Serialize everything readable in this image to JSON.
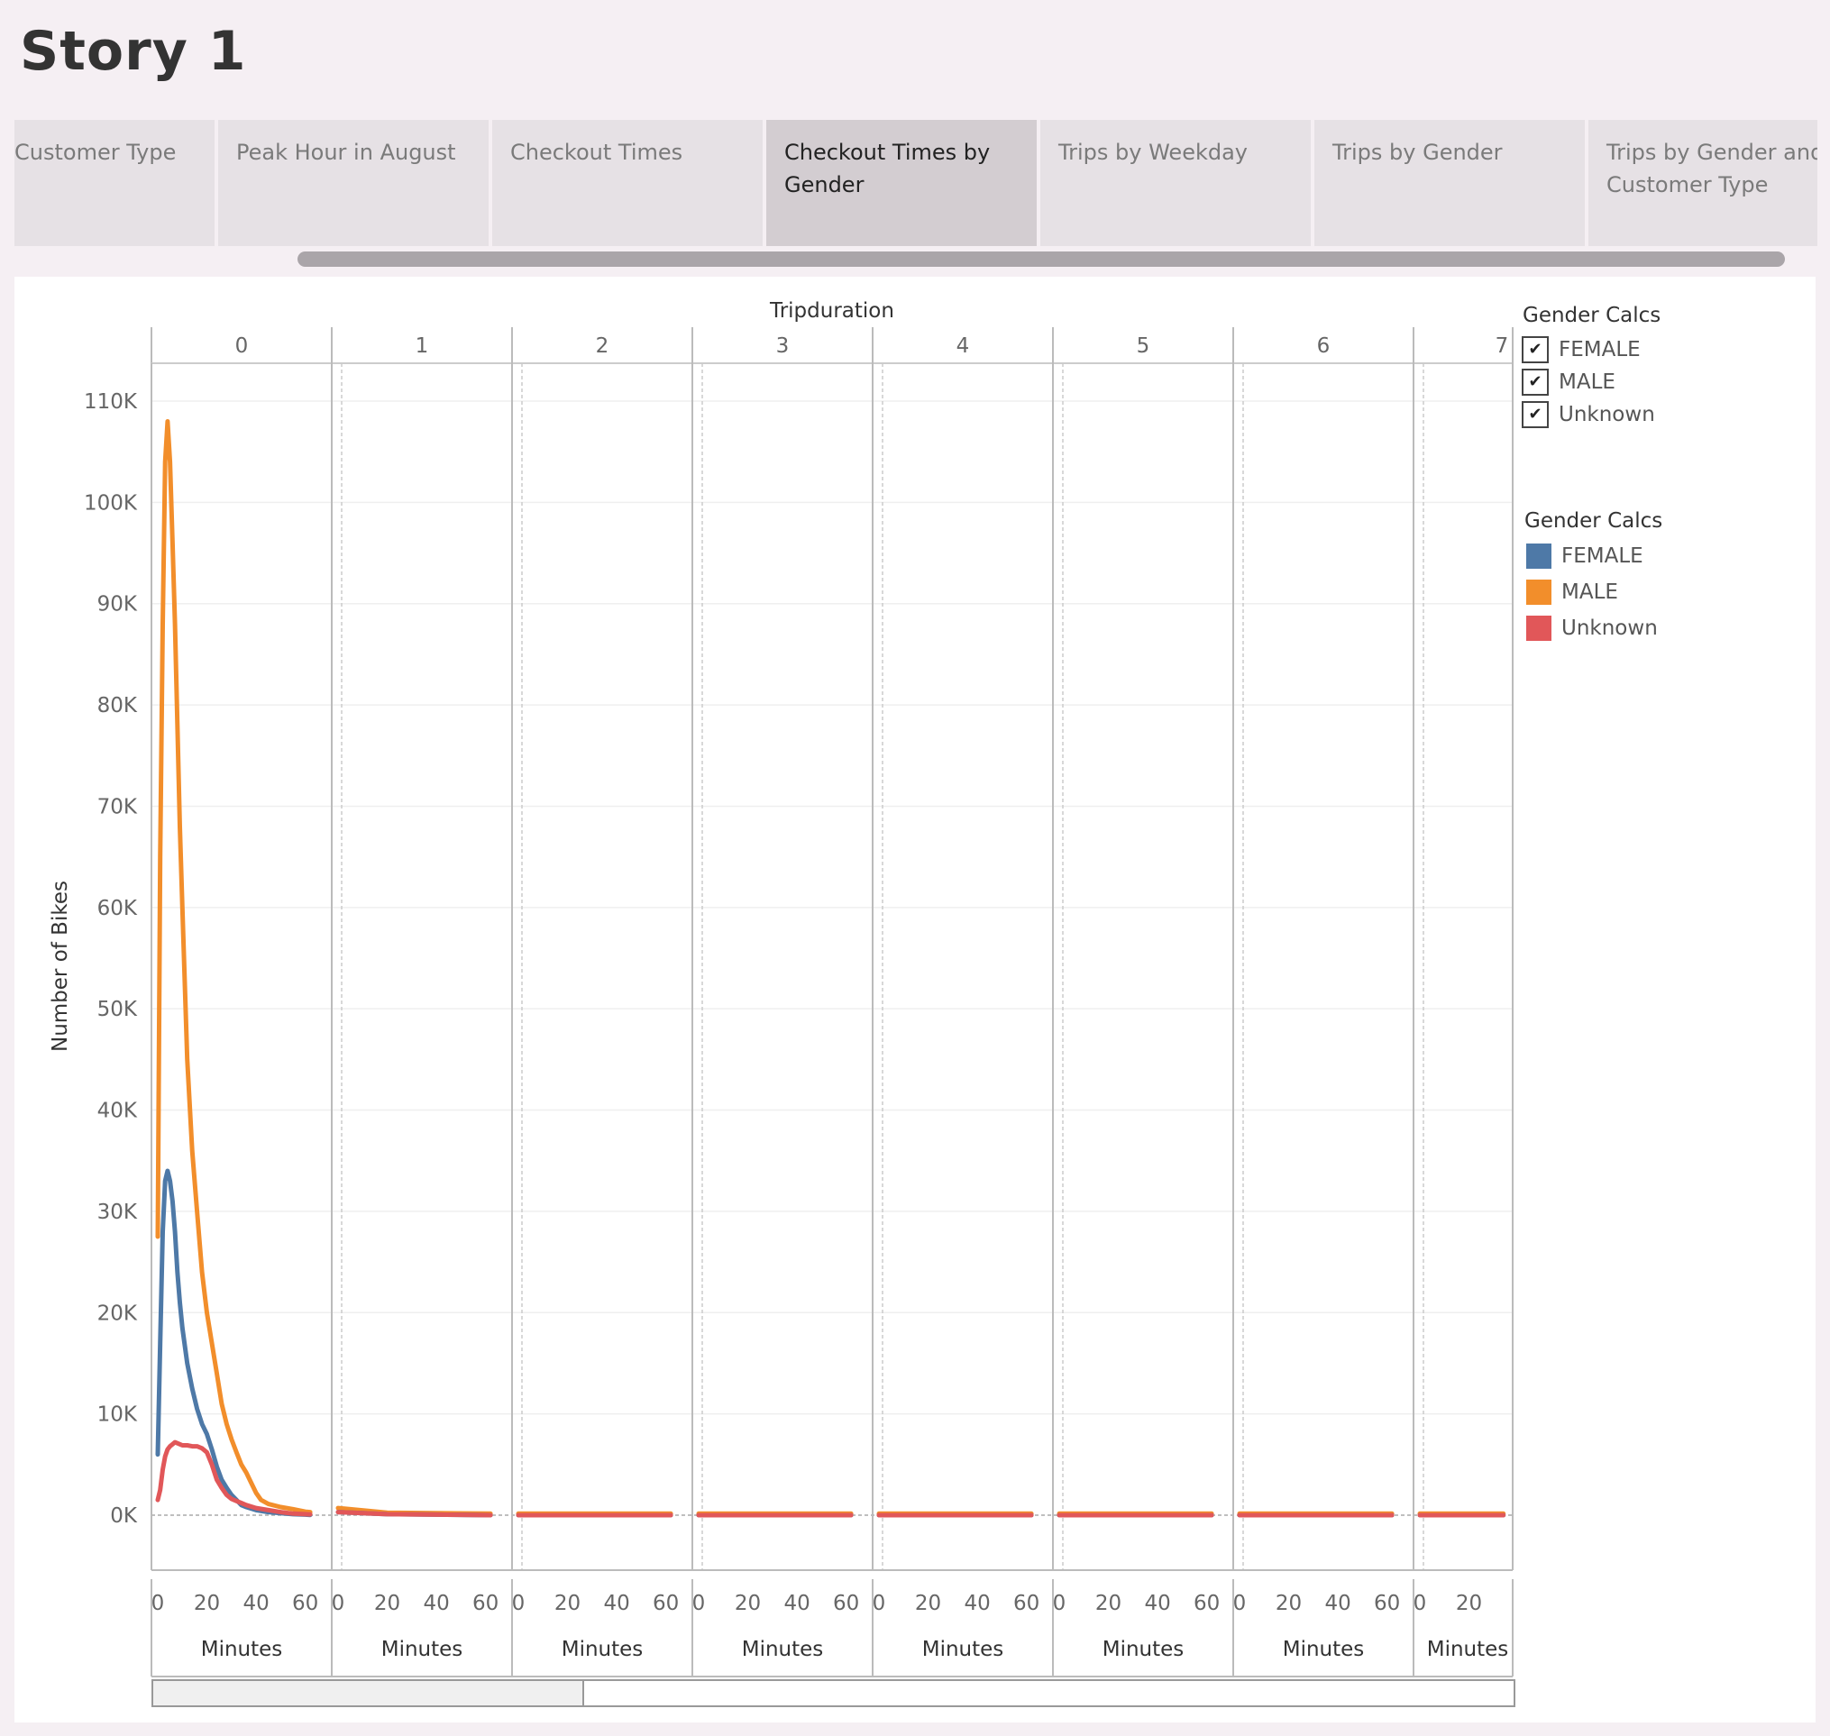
{
  "page": {
    "title": "Story 1"
  },
  "tabs": [
    {
      "label": "Customer Type",
      "active": false
    },
    {
      "label": "Peak Hour in August",
      "active": false
    },
    {
      "label": "Checkout Times",
      "active": false
    },
    {
      "label": "Checkout Times by Gender",
      "active": true
    },
    {
      "label": "Trips by Weekday",
      "active": false
    },
    {
      "label": "Trips by Gender",
      "active": false
    },
    {
      "label": "Trips by Gender and Customer Type",
      "active": false
    }
  ],
  "filter": {
    "title": "Gender Calcs",
    "items": [
      {
        "label": "FEMALE",
        "checked": true
      },
      {
        "label": "MALE",
        "checked": true
      },
      {
        "label": "Unknown",
        "checked": true
      }
    ],
    "check_glyph": "✔"
  },
  "legend": {
    "title": "Gender Calcs",
    "items": [
      {
        "label": "FEMALE",
        "color": "#4e79a7"
      },
      {
        "label": "MALE",
        "color": "#f28e2b"
      },
      {
        "label": "Unknown",
        "color": "#e15759"
      }
    ]
  },
  "chart_data": {
    "type": "line",
    "top_label": "Tripduration",
    "panels": [
      "0",
      "1",
      "2",
      "3",
      "4",
      "5",
      "6",
      "7"
    ],
    "ylabel": "Number of Bikes",
    "xlabel": "Minutes",
    "yticks": [
      "110K",
      "100K",
      "90K",
      "80K",
      "70K",
      "60K",
      "50K",
      "40K",
      "30K",
      "20K",
      "10K",
      "0K"
    ],
    "ytick_values": [
      110000,
      100000,
      90000,
      80000,
      70000,
      60000,
      50000,
      40000,
      30000,
      20000,
      10000,
      0
    ],
    "ylim": [
      -5500,
      115000
    ],
    "xlim": [
      0,
      66
    ],
    "xticks": [
      "0",
      "20",
      "40",
      "60"
    ],
    "last_panel_xticks": [
      "0",
      "20"
    ],
    "series": [
      {
        "name": "MALE",
        "color": "#f28e2b",
        "points": [
          [
            0,
            27500
          ],
          [
            1,
            65000
          ],
          [
            2,
            88000
          ],
          [
            3,
            104000
          ],
          [
            4,
            108000
          ],
          [
            5,
            104000
          ],
          [
            6,
            96000
          ],
          [
            7,
            88000
          ],
          [
            8,
            78000
          ],
          [
            9,
            68000
          ],
          [
            10,
            60000
          ],
          [
            12,
            45000
          ],
          [
            14,
            36000
          ],
          [
            16,
            30000
          ],
          [
            18,
            24000
          ],
          [
            20,
            20000
          ],
          [
            22,
            17000
          ],
          [
            24,
            14000
          ],
          [
            26,
            11000
          ],
          [
            28,
            9000
          ],
          [
            30,
            7500
          ],
          [
            32,
            6200
          ],
          [
            34,
            5000
          ],
          [
            36,
            4200
          ],
          [
            38,
            3200
          ],
          [
            40,
            2200
          ],
          [
            42,
            1500
          ],
          [
            45,
            1100
          ],
          [
            50,
            800
          ],
          [
            55,
            600
          ],
          [
            60,
            350
          ],
          [
            62,
            300
          ]
        ],
        "flat": 150
      },
      {
        "name": "FEMALE",
        "color": "#4e79a7",
        "points": [
          [
            0,
            6000
          ],
          [
            1,
            17000
          ],
          [
            2,
            28000
          ],
          [
            3,
            33000
          ],
          [
            4,
            34000
          ],
          [
            5,
            33000
          ],
          [
            6,
            31000
          ],
          [
            7,
            28000
          ],
          [
            8,
            24000
          ],
          [
            9,
            21000
          ],
          [
            10,
            18500
          ],
          [
            12,
            15000
          ],
          [
            14,
            12500
          ],
          [
            16,
            10500
          ],
          [
            18,
            9000
          ],
          [
            20,
            8000
          ],
          [
            22,
            6500
          ],
          [
            24,
            4800
          ],
          [
            26,
            3500
          ],
          [
            28,
            2700
          ],
          [
            30,
            2000
          ],
          [
            32,
            1500
          ],
          [
            34,
            1000
          ],
          [
            36,
            800
          ],
          [
            40,
            500
          ],
          [
            45,
            300
          ],
          [
            50,
            200
          ],
          [
            55,
            100
          ],
          [
            60,
            50
          ],
          [
            62,
            30
          ]
        ],
        "flat": 0
      },
      {
        "name": "Unknown",
        "color": "#e15759",
        "points": [
          [
            0,
            1500
          ],
          [
            1,
            2500
          ],
          [
            2,
            4500
          ],
          [
            3,
            5800
          ],
          [
            4,
            6500
          ],
          [
            5,
            6800
          ],
          [
            6,
            7000
          ],
          [
            7,
            7200
          ],
          [
            8,
            7100
          ],
          [
            9,
            7000
          ],
          [
            10,
            6900
          ],
          [
            12,
            6900
          ],
          [
            14,
            6800
          ],
          [
            16,
            6800
          ],
          [
            18,
            6600
          ],
          [
            20,
            6200
          ],
          [
            22,
            5000
          ],
          [
            24,
            3500
          ],
          [
            26,
            2700
          ],
          [
            28,
            2000
          ],
          [
            30,
            1600
          ],
          [
            32,
            1400
          ],
          [
            34,
            1200
          ],
          [
            36,
            1000
          ],
          [
            40,
            700
          ],
          [
            45,
            500
          ],
          [
            50,
            300
          ],
          [
            55,
            150
          ],
          [
            60,
            100
          ],
          [
            62,
            80
          ]
        ],
        "flat": 0
      }
    ]
  }
}
